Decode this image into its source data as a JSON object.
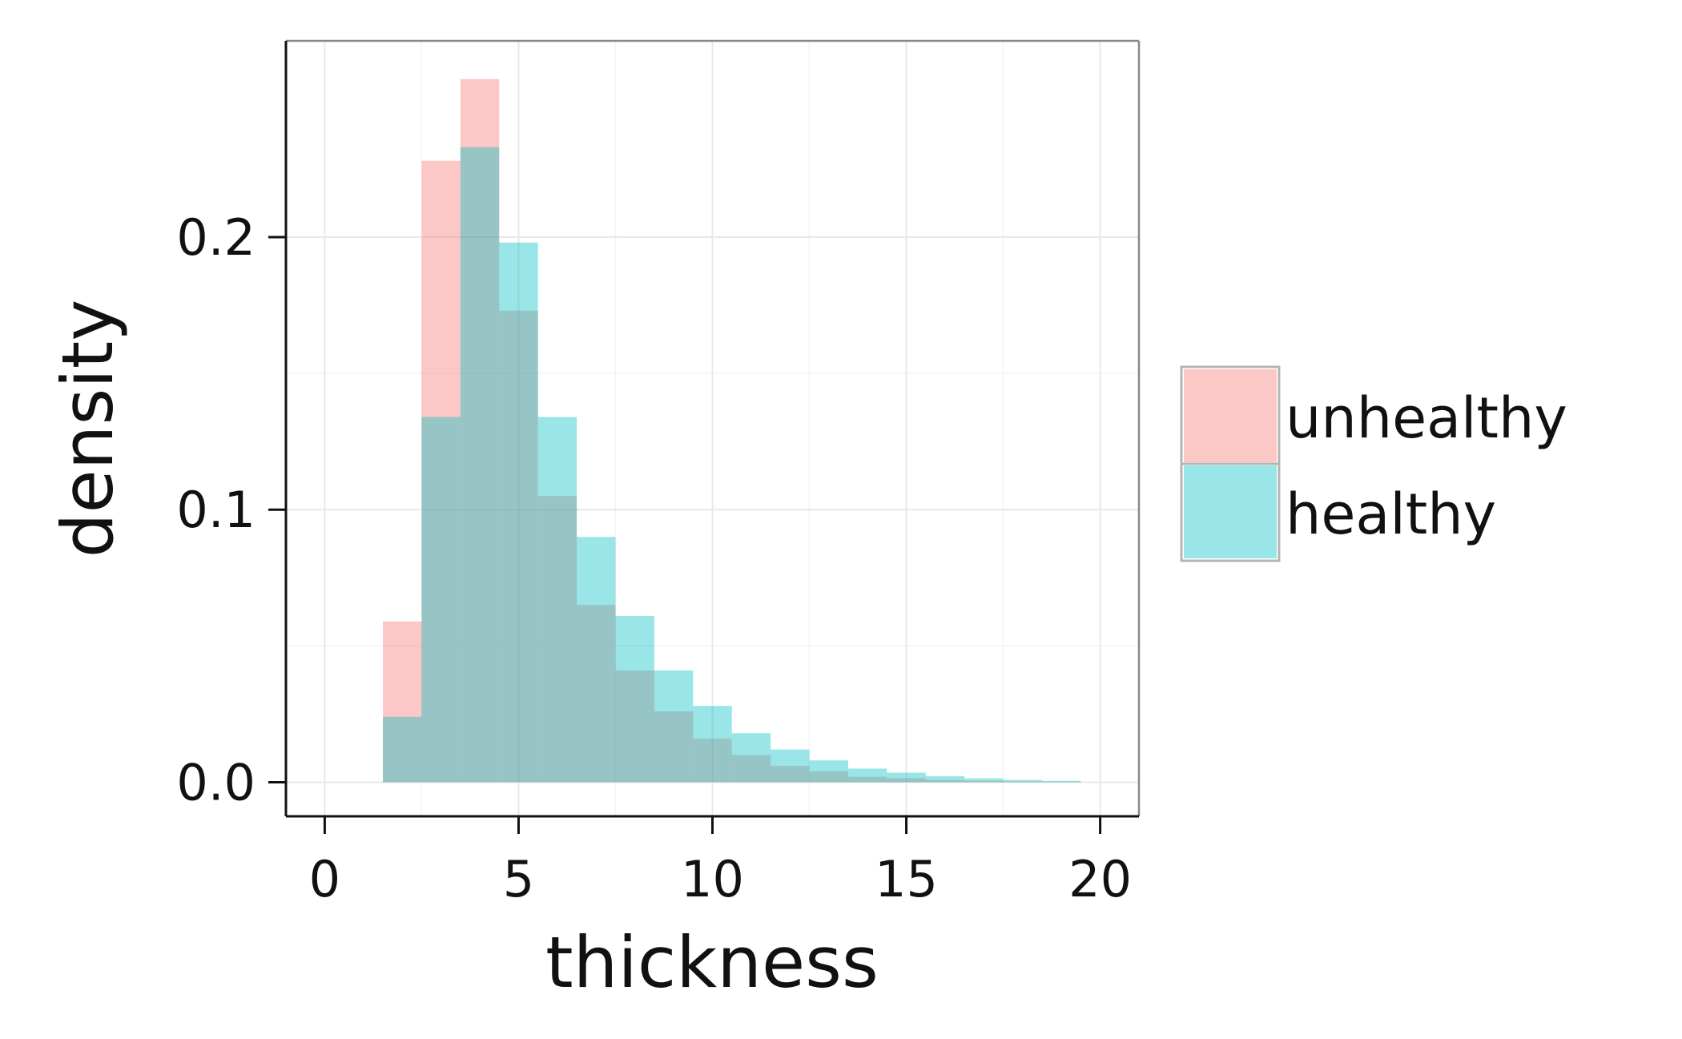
{
  "chart_data": {
    "type": "histogram",
    "xlabel": "thickness",
    "ylabel": "density",
    "xlim": [
      -1,
      21
    ],
    "ylim": [
      -0.0125,
      0.272
    ],
    "x_ticks": [
      0,
      5,
      10,
      15,
      20
    ],
    "x_tick_labels": [
      "0",
      "5",
      "10",
      "15",
      "20"
    ],
    "y_ticks": [
      0.0,
      0.1,
      0.2
    ],
    "y_tick_labels": [
      "0.0",
      "0.1",
      "0.2"
    ],
    "grid": true,
    "legend_position": "right",
    "bin_width": 1,
    "bin_starts": [
      1.5,
      2.5,
      3.5,
      4.5,
      5.5,
      6.5,
      7.5,
      8.5,
      9.5,
      10.5,
      11.5,
      12.5,
      13.5,
      14.5,
      15.5,
      16.5,
      17.5,
      18.5
    ],
    "series": [
      {
        "name": "unhealthy",
        "color": "#F8766D",
        "values": [
          0.059,
          0.228,
          0.258,
          0.173,
          0.105,
          0.065,
          0.041,
          0.026,
          0.016,
          0.01,
          0.006,
          0.004,
          0.002,
          0.0015,
          0.0008,
          0.0005,
          0.0003,
          0.0002
        ]
      },
      {
        "name": "healthy",
        "color": "#00BFC4",
        "values": [
          0.024,
          0.134,
          0.233,
          0.198,
          0.134,
          0.09,
          0.061,
          0.041,
          0.028,
          0.018,
          0.012,
          0.008,
          0.005,
          0.0035,
          0.0022,
          0.0014,
          0.0008,
          0.0005
        ]
      }
    ]
  }
}
